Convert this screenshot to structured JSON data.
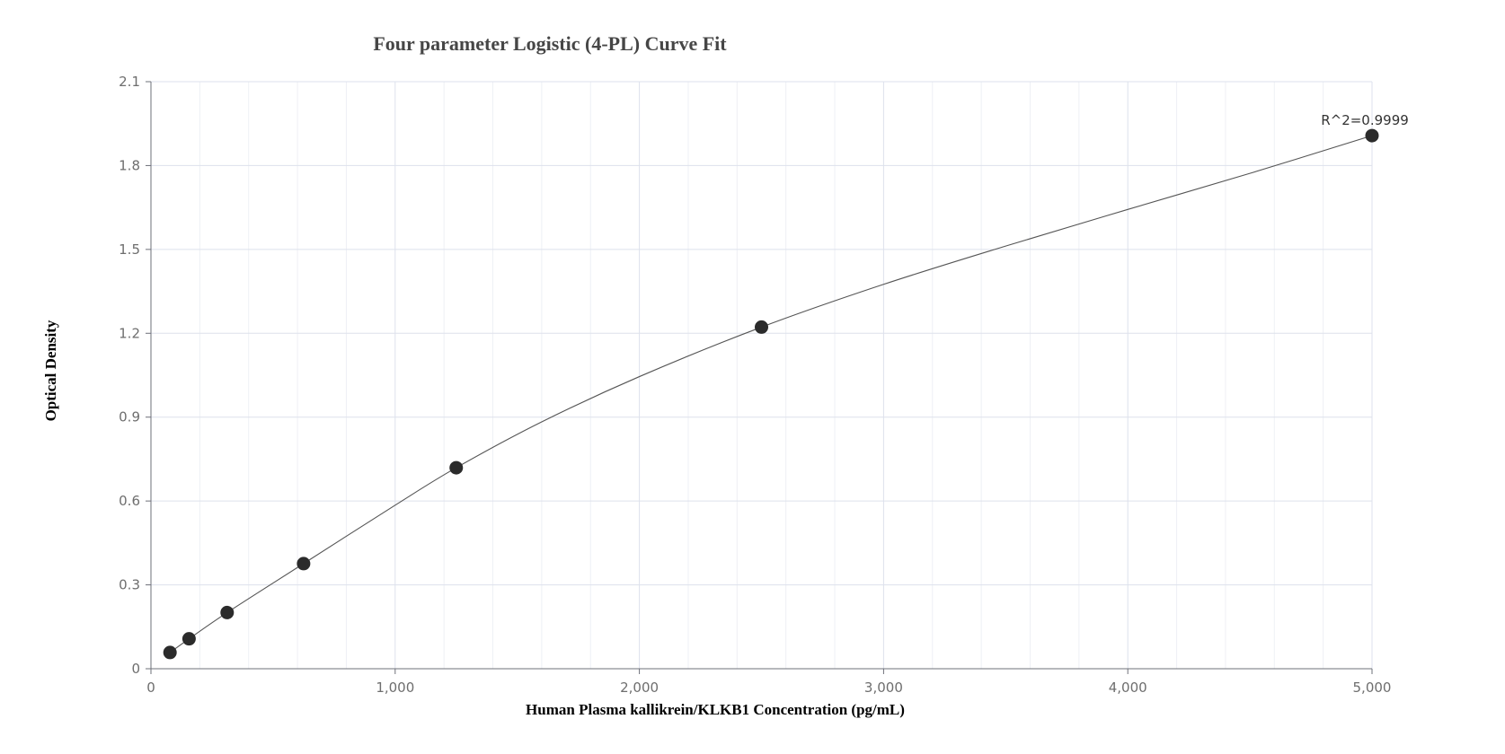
{
  "chart_data": {
    "type": "scatter",
    "title": "Four parameter Logistic (4-PL) Curve Fit",
    "xlabel": "Human Plasma kallikrein/KLKB1 Concentration (pg/mL)",
    "ylabel": "Optical Density",
    "xlim": [
      0,
      5000
    ],
    "ylim": [
      0,
      2.1
    ],
    "x_ticks": [
      0,
      1000,
      2000,
      3000,
      4000,
      5000
    ],
    "x_tick_labels": [
      "0",
      "1,000",
      "2,000",
      "3,000",
      "4,000",
      "5,000"
    ],
    "y_ticks": [
      0,
      0.3,
      0.6,
      0.9,
      1.2,
      1.5,
      1.8,
      2.1
    ],
    "y_tick_labels": [
      "0",
      "0.3",
      "0.6",
      "0.9",
      "1.2",
      "1.5",
      "1.8",
      "2.1"
    ],
    "grid": true,
    "series": [
      {
        "type": "scatter",
        "x": [
          78,
          156,
          312,
          625,
          1250,
          2500,
          5000
        ],
        "y": [
          0.058,
          0.107,
          0.201,
          0.376,
          0.719,
          1.222,
          1.907
        ]
      },
      {
        "type": "line",
        "x": [
          78,
          156,
          312,
          625,
          1000,
          1250,
          1600,
          2000,
          2500,
          3000,
          3500,
          4000,
          4500,
          5000
        ],
        "y": [
          0.058,
          0.107,
          0.201,
          0.376,
          0.585,
          0.719,
          0.883,
          1.045,
          1.222,
          1.375,
          1.512,
          1.643,
          1.772,
          1.907
        ]
      }
    ],
    "annotations": [
      {
        "text": "R^2=0.9999",
        "x": 5000,
        "y": 1.907
      }
    ]
  }
}
